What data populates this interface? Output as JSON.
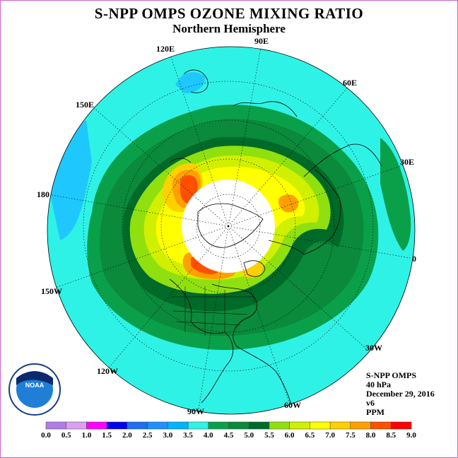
{
  "title": "S-NPP OMPS OZONE MIXING RATIO",
  "subtitle": "Northern Hemisphere",
  "longitude_labels": {
    "lon_90e": "90E",
    "lon_60e": "60E",
    "lon_30e": "30E",
    "lon_0": "0",
    "lon_30w": "30W",
    "lon_60w": "60W",
    "lon_90w": "90W",
    "lon_120w": "120W",
    "lon_150w": "150W",
    "lon_180": "180",
    "lon_150e": "150E",
    "lon_120e": "120E"
  },
  "info": {
    "instrument": "S-NPP OMPS",
    "level": "40 hPa",
    "date": "December 29, 2016",
    "version": "v6",
    "units": "PPM"
  },
  "logo_text": "NOAA",
  "colorbar": {
    "ticks": [
      "0.0",
      "0.5",
      "1.0",
      "1.5",
      "2.0",
      "2.5",
      "3.0",
      "3.5",
      "4.0",
      "4.5",
      "5.0",
      "5.5",
      "6.0",
      "6.5",
      "7.0",
      "7.5",
      "8.0",
      "8.5",
      "9.0"
    ],
    "colors": [
      "#b07ce8",
      "#d9a0f0",
      "#ff00ff",
      "#0000ee",
      "#1e6ef0",
      "#1e90ff",
      "#00b4ff",
      "#2ff2e6",
      "#0aa04a",
      "#0a8a3a",
      "#006a28",
      "#90e010",
      "#d0f000",
      "#ffff00",
      "#ffd000",
      "#ffa000",
      "#ff5000",
      "#ff0000",
      "#8b4513"
    ]
  }
}
